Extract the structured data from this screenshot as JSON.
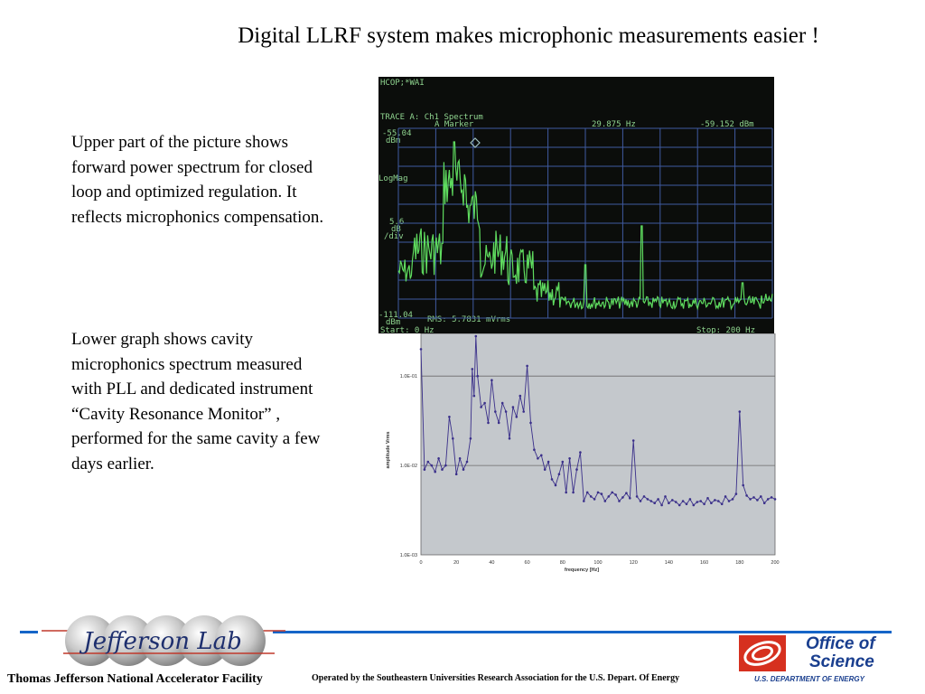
{
  "slide": {
    "title": "Digital LLRF system makes microphonic measurements easier  !",
    "paragraph_1": "Upper part of the picture shows forward power spectrum for closed loop and optimized regulation. It reflects microphonics compensation.",
    "paragraph_2": "Lower graph shows cavity microphonics spectrum measured with PLL and dedicated instrument “Cavity Resonance Monitor” , performed for the same cavity a few days earlier."
  },
  "analyzer": {
    "command": "HCOP;*WAI",
    "trace": "TRACE A: Ch1 Spectrum",
    "marker_label": "A Marker",
    "marker_freq": "29.875 Hz",
    "marker_level": "-59.152 dBm",
    "top_ref_value": "-55.04",
    "top_ref_unit": "dBm",
    "scale_mode": "LogMag",
    "scale_value": "5.6",
    "scale_unit": "dB",
    "scale_div": "/div",
    "bottom_ref_value": "-111.04",
    "bottom_ref_unit": "dBm",
    "rms": "RMS: 5.7831 mVrms",
    "start": "Start: 0 Hz",
    "stop": "Stop: 200 Hz",
    "trace_color": "#5fdc5f",
    "grid_color": "#3f5aa0",
    "text_color": "#8fd48f"
  },
  "chart_data": {
    "type": "line",
    "xlabel": "frequency [Hz]",
    "ylabel": "amplitude Vrms",
    "x_ticks": [
      0,
      20,
      40,
      60,
      80,
      100,
      120,
      140,
      160,
      180,
      200
    ],
    "y_tick_labels": [
      "1.0E-01",
      "1.0E-02",
      "1.0E-03"
    ],
    "xlim": [
      0,
      200
    ],
    "ylim": [
      0.001,
      0.3
    ],
    "log_y": true,
    "grid": true,
    "plot_background": "#c4c8cc",
    "series_color": "#3a2f8a",
    "series": [
      {
        "x": [
          0,
          2,
          4,
          6,
          8,
          10,
          12,
          14,
          16,
          18,
          20,
          22,
          24,
          26,
          28,
          29,
          30,
          31,
          32,
          34,
          36,
          38,
          40,
          42,
          44,
          46,
          48,
          50,
          52,
          54,
          56,
          58,
          60,
          62,
          64,
          66,
          68,
          70,
          72,
          74,
          76,
          78,
          80,
          82,
          84,
          86,
          88,
          90,
          92,
          94,
          96,
          98,
          100,
          102,
          104,
          106,
          108,
          110,
          112,
          114,
          116,
          118,
          120,
          122,
          124,
          126,
          128,
          130,
          132,
          134,
          136,
          138,
          140,
          142,
          144,
          146,
          148,
          150,
          152,
          154,
          156,
          158,
          160,
          162,
          164,
          166,
          168,
          170,
          172,
          174,
          176,
          178,
          180,
          182,
          184,
          186,
          188,
          190,
          192,
          194,
          196,
          198,
          200
        ],
        "y": [
          0.2,
          0.009,
          0.011,
          0.01,
          0.0085,
          0.012,
          0.009,
          0.01,
          0.035,
          0.02,
          0.008,
          0.012,
          0.009,
          0.011,
          0.02,
          0.12,
          0.06,
          0.28,
          0.1,
          0.045,
          0.05,
          0.03,
          0.09,
          0.04,
          0.03,
          0.05,
          0.04,
          0.02,
          0.045,
          0.035,
          0.06,
          0.04,
          0.13,
          0.03,
          0.015,
          0.012,
          0.013,
          0.009,
          0.011,
          0.007,
          0.006,
          0.008,
          0.011,
          0.005,
          0.012,
          0.005,
          0.009,
          0.014,
          0.004,
          0.005,
          0.0045,
          0.0042,
          0.005,
          0.0048,
          0.004,
          0.0045,
          0.005,
          0.0047,
          0.004,
          0.0044,
          0.0049,
          0.0043,
          0.019,
          0.0045,
          0.004,
          0.0045,
          0.0042,
          0.004,
          0.0038,
          0.0042,
          0.0036,
          0.0045,
          0.0038,
          0.0041,
          0.0039,
          0.0036,
          0.004,
          0.0037,
          0.0042,
          0.0036,
          0.0039,
          0.004,
          0.0037,
          0.0043,
          0.0038,
          0.0041,
          0.004,
          0.0037,
          0.0045,
          0.004,
          0.0042,
          0.0048,
          0.04,
          0.006,
          0.0046,
          0.0042,
          0.0044,
          0.0041,
          0.0045,
          0.0038,
          0.0042,
          0.0044,
          0.0042
        ]
      }
    ]
  },
  "footer": {
    "logo_text": "Jefferson Lab",
    "facility": "Thomas Jefferson National Accelerator Facility",
    "operated_by": "Operated by the Southeastern Universities Research Association for the U.S. Depart. Of Energy",
    "office_line1": "Office of",
    "office_line2": "Science",
    "doe": "U.S. DEPARTMENT OF ENERGY",
    "rule_color": "#1565c8"
  }
}
